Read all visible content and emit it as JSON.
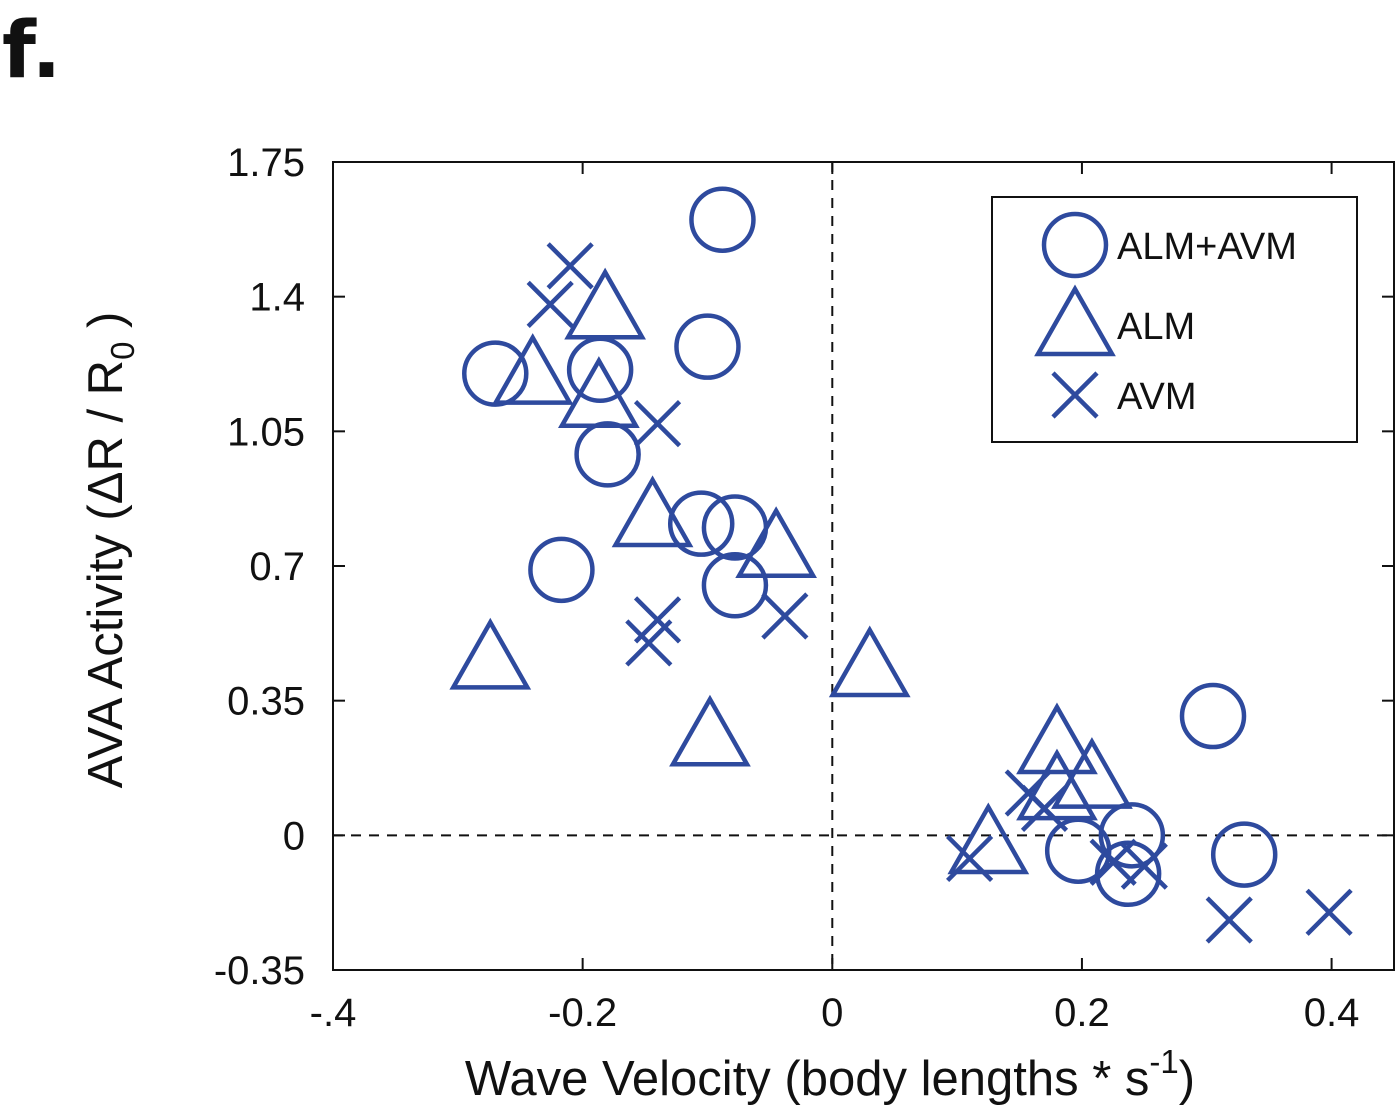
{
  "panel_label": "f.",
  "chart_data": {
    "type": "scatter",
    "xlabel_main": "Wave Velocity (body lengths * s",
    "xlabel_sup": "-1",
    "xlabel_close": ")",
    "ylabel_main": "AVA Activity  (ΔR / R",
    "ylabel_sub": "0",
    "ylabel_close": " )",
    "xlim": [
      -0.4,
      0.45
    ],
    "ylim": [
      -0.35,
      1.75
    ],
    "x_ticks": [
      -0.4,
      -0.2,
      0,
      0.2,
      0.4
    ],
    "x_tick_labels": [
      "-.4",
      "-0.2",
      "0",
      "0.2",
      "0.4"
    ],
    "y_ticks": [
      -0.35,
      0,
      0.35,
      0.7,
      1.05,
      1.4,
      1.75
    ],
    "y_tick_labels": [
      "-0.35",
      "0",
      "0.35",
      "0.7",
      "1.05",
      "1.4",
      "1.75"
    ],
    "reference_lines": {
      "x": 0,
      "y": 0,
      "style": "dashed"
    },
    "legend_position": "top-right",
    "marker_color": "#2e4a9e",
    "series": [
      {
        "name": "ALM+AVM",
        "marker": "circle",
        "points": [
          [
            -0.088,
            1.6
          ],
          [
            -0.27,
            1.2
          ],
          [
            -0.186,
            1.21
          ],
          [
            -0.18,
            0.99
          ],
          [
            -0.1,
            1.27
          ],
          [
            -0.105,
            0.81
          ],
          [
            -0.078,
            0.8
          ],
          [
            -0.078,
            0.65
          ],
          [
            -0.217,
            0.69
          ],
          [
            0.305,
            0.31
          ],
          [
            0.197,
            -0.04
          ],
          [
            0.24,
            0.0
          ],
          [
            0.237,
            -0.1
          ],
          [
            0.33,
            -0.05
          ]
        ]
      },
      {
        "name": "ALM",
        "marker": "triangle",
        "points": [
          [
            -0.182,
            1.37
          ],
          [
            -0.24,
            1.2
          ],
          [
            -0.187,
            1.14
          ],
          [
            -0.144,
            0.83
          ],
          [
            -0.045,
            0.75
          ],
          [
            -0.274,
            0.46
          ],
          [
            -0.098,
            0.26
          ],
          [
            0.03,
            0.44
          ],
          [
            0.18,
            0.24
          ],
          [
            0.208,
            0.15
          ],
          [
            0.18,
            0.12
          ],
          [
            0.125,
            -0.02
          ]
        ]
      },
      {
        "name": "AVM",
        "marker": "x",
        "points": [
          [
            -0.21,
            1.48
          ],
          [
            -0.226,
            1.38
          ],
          [
            -0.14,
            1.07
          ],
          [
            -0.14,
            0.56
          ],
          [
            -0.147,
            0.5
          ],
          [
            -0.038,
            0.57
          ],
          [
            0.157,
            0.11
          ],
          [
            0.17,
            0.07
          ],
          [
            0.11,
            -0.06
          ],
          [
            0.225,
            -0.07
          ],
          [
            0.25,
            -0.08
          ],
          [
            0.318,
            -0.22
          ],
          [
            0.398,
            -0.2
          ]
        ]
      }
    ]
  }
}
